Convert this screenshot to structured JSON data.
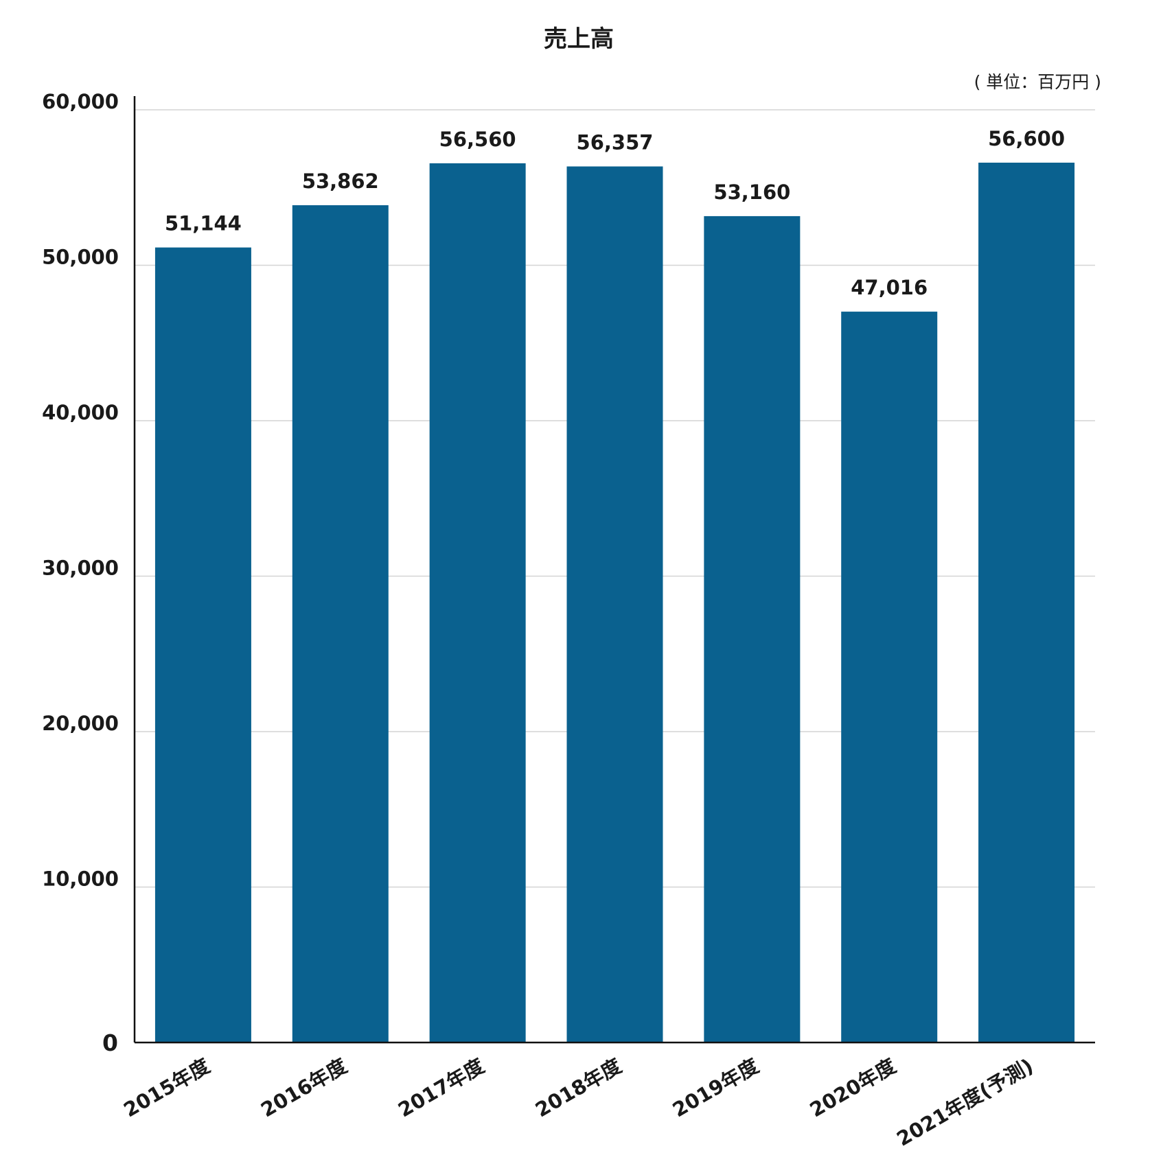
{
  "chart_data": {
    "type": "bar",
    "title": "売上高",
    "unit_note": "( 単位：百万円 )",
    "categories": [
      "2015年度",
      "2016年度",
      "2017年度",
      "2018年度",
      "2019年度",
      "2020年度",
      "2021年度(予測)"
    ],
    "values": [
      51144,
      53862,
      56560,
      56357,
      53160,
      47016,
      56600
    ],
    "value_labels": [
      "51,144",
      "53,862",
      "56,560",
      "56,357",
      "53,160",
      "47,016",
      "56,600"
    ],
    "ylim": [
      0,
      60000
    ],
    "yticks": [
      0,
      10000,
      20000,
      30000,
      40000,
      50000,
      60000
    ],
    "ytick_labels": [
      "0",
      "10,000",
      "20,000",
      "30,000",
      "40,000",
      "50,000",
      "60,000"
    ],
    "xlabel": "",
    "ylabel": "",
    "grid": "horizontal",
    "legend": "none",
    "bar_color": "#0a618f",
    "grid_color": "#d4d4d4",
    "axis_color": "#111111"
  }
}
